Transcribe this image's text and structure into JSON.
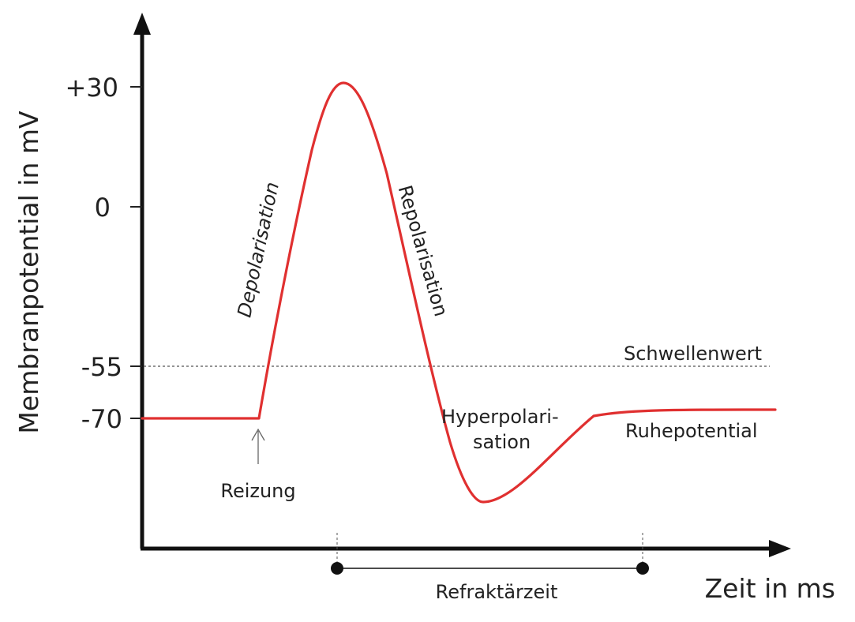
{
  "axes": {
    "y_title": "Membranpotential in mV",
    "x_title": "Zeit in ms",
    "y_ticks": [
      "+30",
      "0",
      "-55",
      "-70"
    ]
  },
  "labels": {
    "depolarisation": "Depolarisation",
    "repolarisation": "Repolarisation",
    "hyperpolarisation_line1": "Hyperpolari-",
    "hyperpolarisation_line2": "sation",
    "threshold": "Schwellenwert",
    "resting": "Ruhepotential",
    "stimulus": "Reizung",
    "refractory": "Refraktärzeit"
  },
  "colors": {
    "curve": "#e03030",
    "axis": "#111111",
    "threshold_line": "#555555"
  }
}
